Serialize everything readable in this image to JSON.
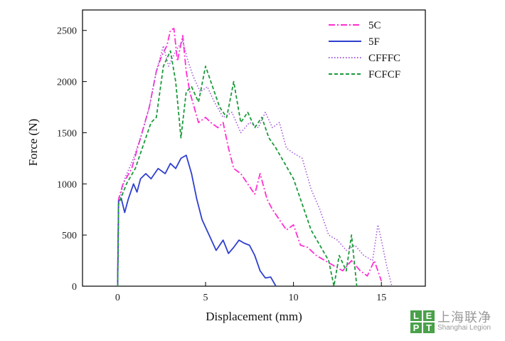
{
  "chart_data": {
    "type": "line",
    "title": "",
    "xlabel": "Displacement (mm)",
    "ylabel": "Force (N)",
    "xlim": [
      -2,
      17.5
    ],
    "ylim": [
      0,
      2700
    ],
    "x_ticks": [
      0,
      5,
      10,
      15
    ],
    "y_ticks": [
      0,
      500,
      1000,
      1500,
      2000,
      2500
    ],
    "grid": false,
    "legend_position": "top-right",
    "series": [
      {
        "name": "5C",
        "color": "#ff2fd2",
        "style": "dash-dot",
        "x": [
          0,
          0.05,
          0.3,
          0.8,
          1.3,
          1.8,
          2.2,
          2.5,
          2.8,
          3.0,
          3.2,
          3.4,
          3.7,
          3.9,
          4.1,
          4.3,
          4.6,
          5.0,
          5.3,
          5.7,
          6.0,
          6.3,
          6.6,
          7.0,
          7.4,
          7.8,
          8.1,
          8.5,
          8.8,
          9.2,
          9.6,
          10.0,
          10.4,
          10.8,
          11.3,
          11.8,
          12.3,
          12.8,
          13.3,
          13.8,
          14.2,
          14.6,
          15.0
        ],
        "y": [
          0,
          850,
          1000,
          1150,
          1450,
          1750,
          2100,
          2250,
          2350,
          2500,
          2520,
          2200,
          2450,
          2100,
          1900,
          1780,
          1600,
          1650,
          1600,
          1550,
          1600,
          1350,
          1150,
          1100,
          1000,
          900,
          1100,
          850,
          750,
          650,
          550,
          600,
          400,
          380,
          300,
          250,
          200,
          150,
          250,
          150,
          100,
          250,
          50
        ]
      },
      {
        "name": "5F",
        "color": "#2f3fcf",
        "style": "solid",
        "x": [
          0,
          0.05,
          0.2,
          0.4,
          0.6,
          0.9,
          1.1,
          1.3,
          1.6,
          1.9,
          2.3,
          2.7,
          3.0,
          3.3,
          3.6,
          3.9,
          4.2,
          4.5,
          4.8,
          5.2,
          5.6,
          6.0,
          6.3,
          6.6,
          6.9,
          7.2,
          7.5,
          7.8,
          8.1,
          8.4,
          8.7,
          9.0
        ],
        "y": [
          0,
          830,
          860,
          720,
          850,
          1000,
          920,
          1050,
          1100,
          1050,
          1150,
          1100,
          1200,
          1150,
          1250,
          1280,
          1100,
          850,
          650,
          500,
          350,
          450,
          320,
          380,
          450,
          420,
          400,
          300,
          150,
          80,
          90,
          0
        ]
      },
      {
        "name": "CFFFC",
        "color": "#a35ad8",
        "style": "dotted",
        "x": [
          0,
          0.05,
          0.4,
          0.9,
          1.4,
          1.8,
          2.2,
          2.6,
          2.9,
          3.3,
          3.7,
          4.0,
          4.3,
          4.7,
          5.1,
          5.5,
          6.0,
          6.5,
          7.0,
          7.5,
          8.0,
          8.4,
          8.8,
          9.2,
          9.6,
          10.0,
          10.5,
          11.0,
          11.5,
          12.0,
          12.5,
          13.0,
          13.5,
          14.0,
          14.5,
          14.8,
          15.0,
          15.3,
          15.6
        ],
        "y": [
          0,
          800,
          1050,
          1250,
          1500,
          1750,
          2100,
          2350,
          2150,
          2300,
          2400,
          2200,
          2050,
          1900,
          1950,
          1800,
          1650,
          1700,
          1500,
          1600,
          1550,
          1700,
          1550,
          1600,
          1350,
          1300,
          1250,
          950,
          750,
          500,
          450,
          350,
          400,
          300,
          250,
          600,
          450,
          200,
          0
        ]
      },
      {
        "name": "FCFCF",
        "color": "#1a9a3a",
        "style": "dashed",
        "x": [
          0,
          0.05,
          0.5,
          1.0,
          1.5,
          1.9,
          2.2,
          2.6,
          3.0,
          3.3,
          3.6,
          3.9,
          4.2,
          4.6,
          5.0,
          5.4,
          5.8,
          6.2,
          6.6,
          7.0,
          7.4,
          7.8,
          8.2,
          8.6,
          9.0,
          9.5,
          10.0,
          10.5,
          11.0,
          11.5,
          12.0,
          12.3,
          12.6,
          13.0,
          13.3,
          13.6
        ],
        "y": [
          0,
          800,
          1000,
          1150,
          1400,
          1600,
          1650,
          2150,
          2300,
          2000,
          1450,
          1900,
          1950,
          1800,
          2150,
          1950,
          1750,
          1650,
          2000,
          1600,
          1700,
          1550,
          1650,
          1450,
          1350,
          1200,
          1050,
          800,
          550,
          400,
          250,
          0,
          300,
          150,
          500,
          0
        ]
      }
    ]
  },
  "watermark": {
    "mark_letters": [
      "L",
      "E",
      "P",
      "T"
    ],
    "name_cn": "上海联净",
    "name_en": "Shanghai Legion"
  }
}
